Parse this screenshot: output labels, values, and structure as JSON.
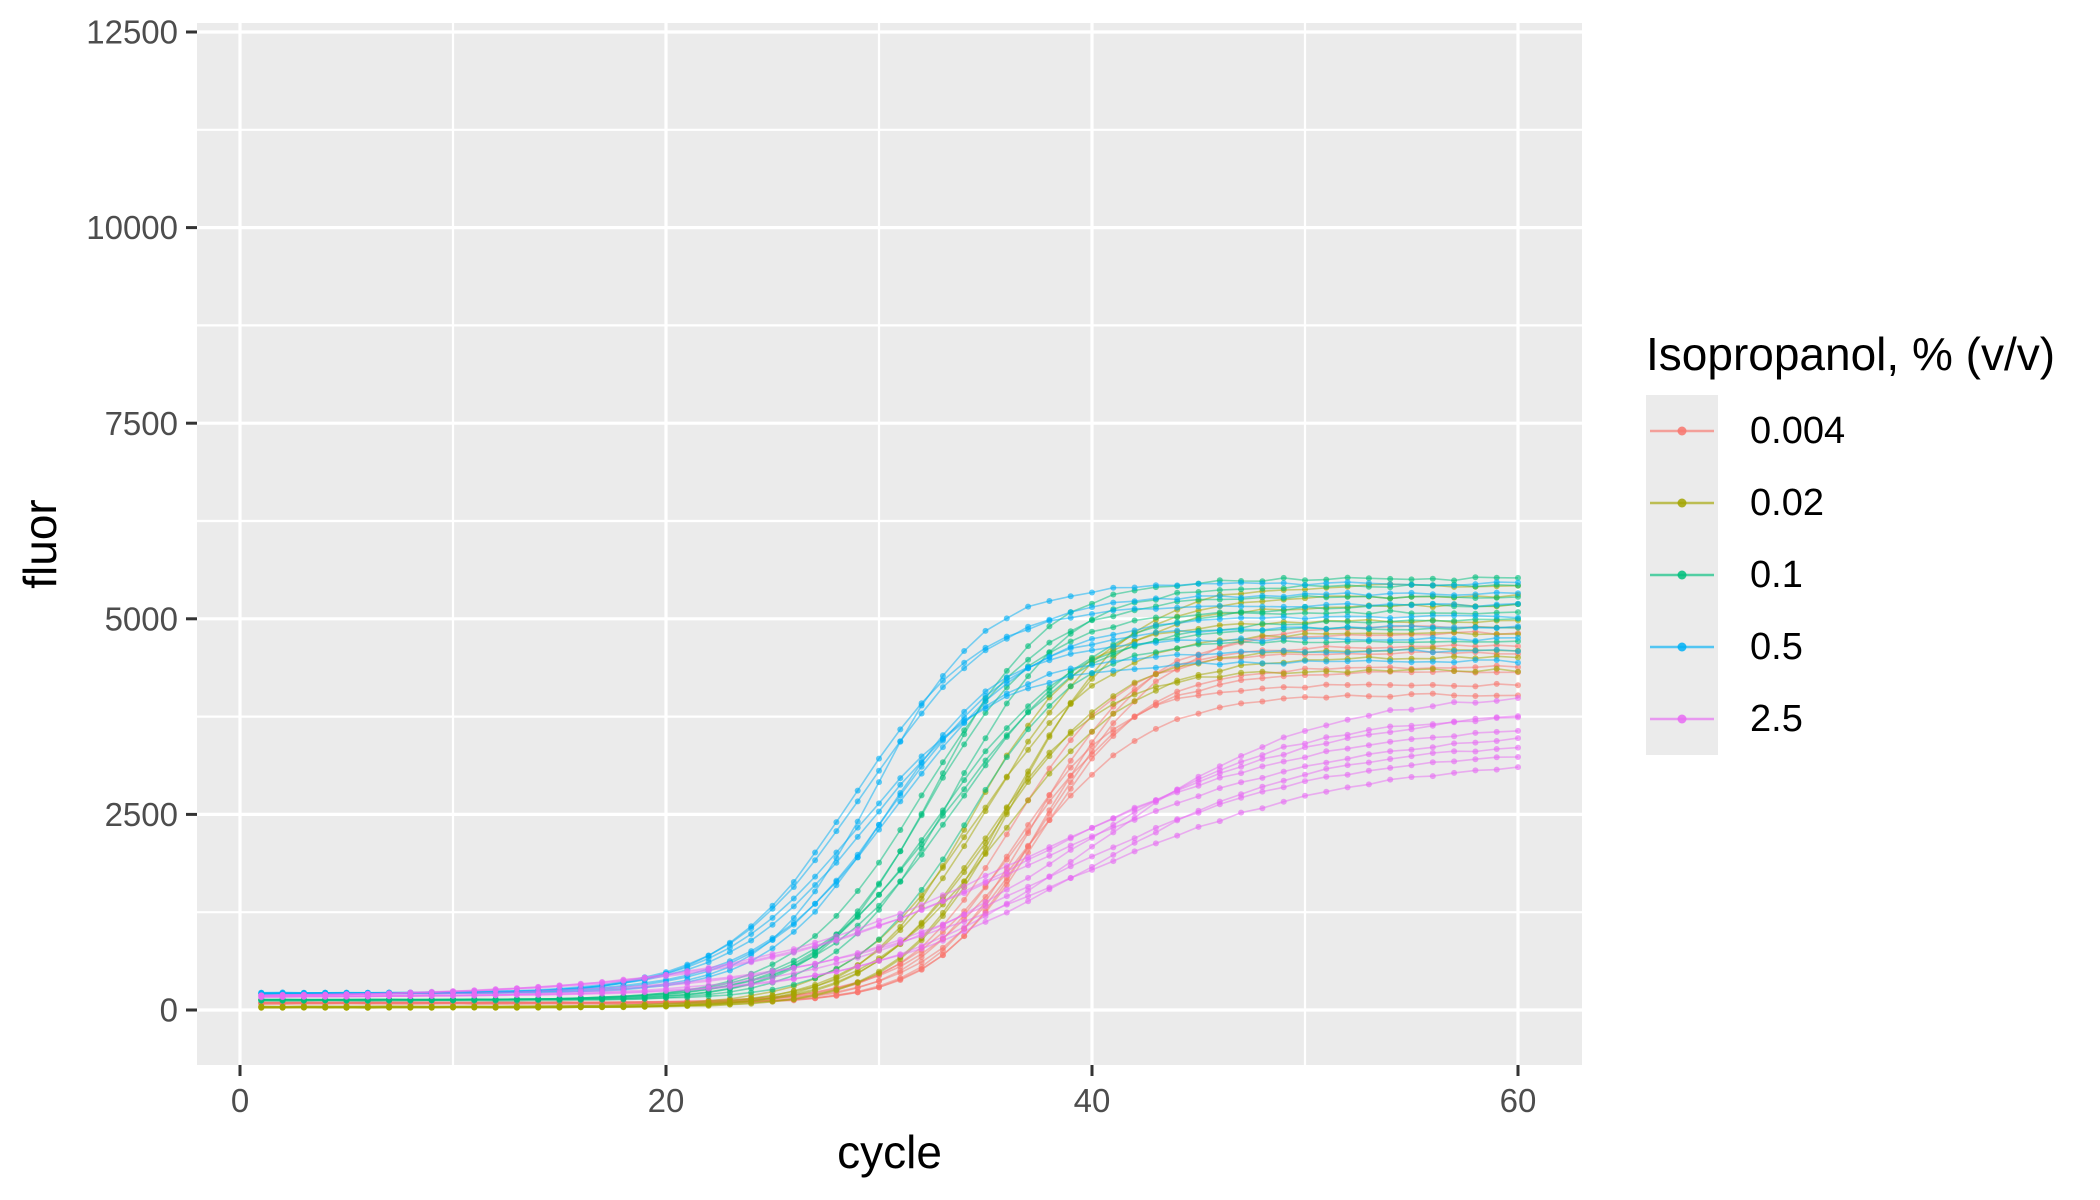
{
  "chart_data": {
    "type": "line",
    "title": "",
    "xlabel": "cycle",
    "ylabel": "fluor",
    "x_ticks": [
      0,
      20,
      40,
      60
    ],
    "x_minor_ticks": [
      10,
      30,
      50
    ],
    "y_ticks": [
      0,
      2500,
      5000,
      7500,
      10000,
      12500
    ],
    "y_minor_ticks": [
      1250,
      3750,
      6250,
      8750,
      11250
    ],
    "xlim": [
      -2,
      63
    ],
    "ylim": [
      -700,
      12620
    ],
    "grid": true,
    "legend_position": "right",
    "panel_bg": "#EBEBEB",
    "grid_color": "#FFFFFF",
    "tick_mark_color": "#333333",
    "tick_label_color": "#4D4D4D",
    "cycle_start": 1,
    "cycle_end": 60,
    "replicates_per_group": 8,
    "model": "fluor = baseline + (plateau - baseline) / (1 + exp(-slope * (cycle - midpoint)))",
    "seed": 20,
    "legend": {
      "title": "Isopropanol, % (v/v)"
    },
    "series": [
      {
        "label": "0.004",
        "percent_vv": 0.004,
        "color": "#F8766D",
        "baseline": 88,
        "baseline_jitter": 9,
        "plateau_min": 3960,
        "plateau_max": 4990,
        "midpoint_min": 36.0,
        "midpoint_max": 38.2,
        "slope": 0.37,
        "slope_jitter": 0.05
      },
      {
        "label": "0.02",
        "percent_vv": 0.02,
        "color": "#A3A500",
        "baseline": 38,
        "baseline_jitter": 9,
        "plateau_min": 4250,
        "plateau_max": 5530,
        "midpoint_min": 34.2,
        "midpoint_max": 36.6,
        "slope": 0.36,
        "slope_jitter": 0.05
      },
      {
        "label": "0.1",
        "percent_vv": 0.1,
        "color": "#00BF7D",
        "baseline": 125,
        "baseline_jitter": 9,
        "plateau_min": 4700,
        "plateau_max": 5580,
        "midpoint_min": 31.8,
        "midpoint_max": 34.2,
        "slope": 0.34,
        "slope_jitter": 0.05
      },
      {
        "label": "0.5",
        "percent_vv": 0.5,
        "color": "#00B0F6",
        "baseline": 212,
        "baseline_jitter": 10,
        "plateau_min": 4420,
        "plateau_max": 5560,
        "midpoint_min": 28.5,
        "midpoint_max": 31.0,
        "slope": 0.35,
        "slope_jitter": 0.05
      },
      {
        "label": "2.5",
        "percent_vv": 2.5,
        "color": "#E76BF3",
        "baseline": 165,
        "baseline_jitter": 9,
        "plateau_min": 3150,
        "plateau_max": 4100,
        "midpoint_min": 36.5,
        "midpoint_max": 40.5,
        "slope": 0.17,
        "slope_jitter": 0.03
      }
    ],
    "point_radius": 3,
    "point_opacity": 0.62,
    "line_width": 1.6,
    "line_opacity": 0.5
  }
}
